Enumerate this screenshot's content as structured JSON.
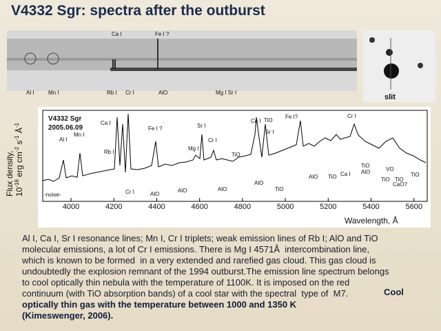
{
  "title": "V4332 Sgr: spectra after the outburst",
  "strip": {
    "top_labels": [
      "Ca I",
      "Fe I ?"
    ],
    "bottom_labels": [
      "Al I",
      "Mn I",
      "Rb I",
      "Cr I",
      "AlO",
      "Mg I Sr I"
    ]
  },
  "slit_label": "slit",
  "plot": {
    "object": "V4332 Sgr",
    "date": "2005.06.09",
    "y_label": [
      "Flux density,",
      "10",
      "-16",
      " erg cm",
      "-2",
      " s",
      "-1",
      " Å",
      "-1"
    ],
    "x_label": "Wavelength, Å",
    "noise": "-noise-",
    "xlim": [
      3868,
      5662
    ],
    "xticks": [
      4000,
      4200,
      4400,
      4600,
      4800,
      5000,
      5200,
      5400,
      5600
    ],
    "line_labels": [
      "Al I",
      "Mn I",
      "Ca I",
      "Rb I",
      "Fe I ?",
      "Cr I",
      "AlO",
      "AlO",
      "Mg I",
      "Sr I",
      "Cr I",
      "AlO",
      "TiO",
      "Ca I",
      "TiO",
      "Sr I",
      "AlO",
      "TiO",
      "Fe I?",
      "AlO",
      "TiO",
      "Cr I",
      "Ca I",
      "TiO",
      "AlO",
      "VO",
      "TiO",
      "TiO",
      "CaO?",
      "TiO"
    ]
  },
  "body": {
    "lines": [
      "Al I, Ca I, Sr I resonance lines; Mn I, Cr I triplets; weak emission lines of Rb I; AlO and TiO",
      "molecular emissions, a lot of Cr I emissions. There is Mg I 4571Å  intercombination line,",
      "which is known to be formed  in a very extended and rarefied gas cloud. This gas cloud is",
      "undoubtedly the explosion remnant of the 1994 outburst.The emission line spectrum belongs",
      "to cool optically thin nebula with the temperature of 1100K. It is imposed on the red",
      "continuum (with TiO absorption bands) of a cool star with the spectral  type of  M7."
    ],
    "bold": [
      "Cool",
      "optically thin gas with the temperature between 1000 and 1350 K",
      "(Kimeswenger, 2006)."
    ]
  }
}
